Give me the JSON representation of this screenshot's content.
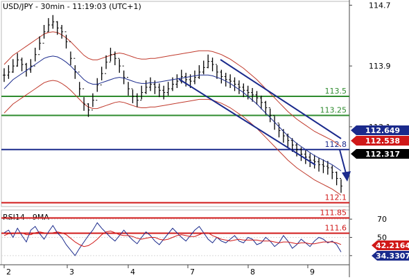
{
  "chart_data": [
    {
      "type": "line",
      "title": "USD/JPY - 30min - 11:19:03 (UTC+1)",
      "ylim": [
        112.05,
        114.75
      ],
      "y_ticks": [
        113.1,
        113.9,
        114.7
      ],
      "x_ticks": [
        "2",
        "3",
        "4",
        "7",
        "8",
        "9"
      ],
      "series": [
        {
          "name": "",
          "values": [
            113.78,
            113.82,
            113.9,
            113.98,
            113.92,
            113.85,
            113.9,
            114.05,
            114.2,
            114.35,
            114.44,
            114.48,
            114.4,
            114.35,
            114.22,
            114.0,
            113.82,
            113.6,
            113.4,
            113.32,
            113.45,
            113.65,
            113.8,
            113.95,
            114.05,
            114.0,
            113.9,
            113.75,
            113.6,
            113.5,
            113.45,
            113.55,
            113.62,
            113.66,
            113.62,
            113.58,
            113.55,
            113.6,
            113.66,
            113.7,
            113.76,
            113.72,
            113.7,
            113.75,
            113.82,
            113.88,
            113.96,
            113.92,
            113.82,
            113.76,
            113.72,
            113.7,
            113.66,
            113.62,
            113.58,
            113.55,
            113.52,
            113.48,
            113.42,
            113.35,
            113.25,
            113.15,
            113.05,
            112.98,
            112.92,
            112.86,
            112.8,
            112.74,
            112.7,
            112.66,
            112.64,
            112.6,
            112.58,
            112.56,
            112.5,
            112.42,
            112.32
          ]
        },
        {
          "name": "",
          "values": [
            113.6,
            113.66,
            113.72,
            113.76,
            113.8,
            113.84,
            113.88,
            113.92,
            113.96,
            114.0,
            114.02,
            114.03,
            114.02,
            113.99,
            113.95,
            113.9,
            113.84,
            113.78,
            113.72,
            113.68,
            113.66,
            113.66,
            113.68,
            113.7,
            113.72,
            113.74,
            113.75,
            113.74,
            113.72,
            113.7,
            113.68,
            113.67,
            113.67,
            113.68,
            113.68,
            113.69,
            113.7,
            113.71,
            113.72,
            113.73,
            113.74,
            113.75,
            113.76,
            113.77,
            113.78,
            113.78,
            113.78,
            113.77,
            113.75,
            113.73,
            113.7,
            113.67,
            113.63,
            113.59,
            113.55,
            113.5,
            113.45,
            113.4,
            113.34,
            113.28,
            113.22,
            113.16,
            113.1,
            113.04,
            112.98,
            112.93,
            112.88,
            112.84,
            112.8,
            112.76,
            112.72,
            112.69,
            112.66,
            112.63,
            112.6,
            112.56,
            112.52
          ]
        }
      ],
      "horizontal_levels": [
        {
          "value": 113.5,
          "label": "113.5",
          "color": "#2e8b2e"
        },
        {
          "value": 113.25,
          "label": "113.25",
          "color": "#2e8b2e"
        },
        {
          "value": 112.8,
          "label": "112.8",
          "color": "#1a2a8c"
        },
        {
          "value": 112.1,
          "label": "112.1",
          "color": "#d01818"
        },
        {
          "value": 111.85,
          "label": "111.85",
          "color": "#d01818"
        },
        {
          "value": 111.6,
          "label": "111.6",
          "color": "#d01818"
        }
      ],
      "price_tags": [
        {
          "value": 112.649,
          "label": "112.649",
          "color": "#1a2a8c"
        },
        {
          "value": 112.538,
          "label": "112.538",
          "color": "#d01818"
        },
        {
          "value": 112.317,
          "label": "112.317",
          "color": "#000000"
        }
      ],
      "channel_color": "#1a2a8c",
      "forecast_arrow_color": "#1a2a8c"
    },
    {
      "type": "line",
      "title": "RSI14 - 9MA",
      "ylim": [
        20,
        80
      ],
      "y_ticks": [
        30,
        50,
        70
      ],
      "series": [
        {
          "name": "",
          "color": "#1a2a8c",
          "values": [
            55,
            58,
            50,
            60,
            52,
            45,
            58,
            62,
            54,
            48,
            56,
            63,
            55,
            50,
            42,
            36,
            30,
            38,
            45,
            52,
            58,
            66,
            60,
            55,
            50,
            46,
            52,
            58,
            52,
            47,
            43,
            50,
            56,
            52,
            46,
            42,
            48,
            54,
            60,
            55,
            50,
            46,
            52,
            58,
            62,
            55,
            48,
            44,
            50,
            46,
            44,
            48,
            52,
            46,
            44,
            50,
            48,
            42,
            44,
            50,
            46,
            40,
            44,
            52,
            46,
            38,
            42,
            48,
            44,
            40,
            46,
            50,
            48,
            44,
            46,
            42,
            34
          ]
        },
        {
          "name": "",
          "color": "#d01818",
          "values": [
            52,
            54,
            54,
            55,
            55,
            53,
            53,
            55,
            56,
            55,
            54,
            55,
            56,
            55,
            53,
            49,
            45,
            42,
            40,
            41,
            44,
            48,
            53,
            56,
            57,
            55,
            53,
            52,
            52,
            51,
            49,
            48,
            49,
            50,
            50,
            48,
            47,
            48,
            50,
            52,
            53,
            52,
            51,
            51,
            53,
            55,
            55,
            52,
            50,
            48,
            47,
            46,
            47,
            48,
            47,
            47,
            47,
            47,
            46,
            46,
            46,
            45,
            44,
            45,
            45,
            44,
            43,
            44,
            44,
            43,
            43,
            44,
            45,
            45,
            45,
            44,
            42.2
          ]
        }
      ],
      "price_tags": [
        {
          "value": 42.2164,
          "label": "42.2164",
          "color": "#d01818"
        },
        {
          "value": 34.3307,
          "label": "34.3307",
          "color": "#1a2a8c"
        }
      ]
    }
  ]
}
